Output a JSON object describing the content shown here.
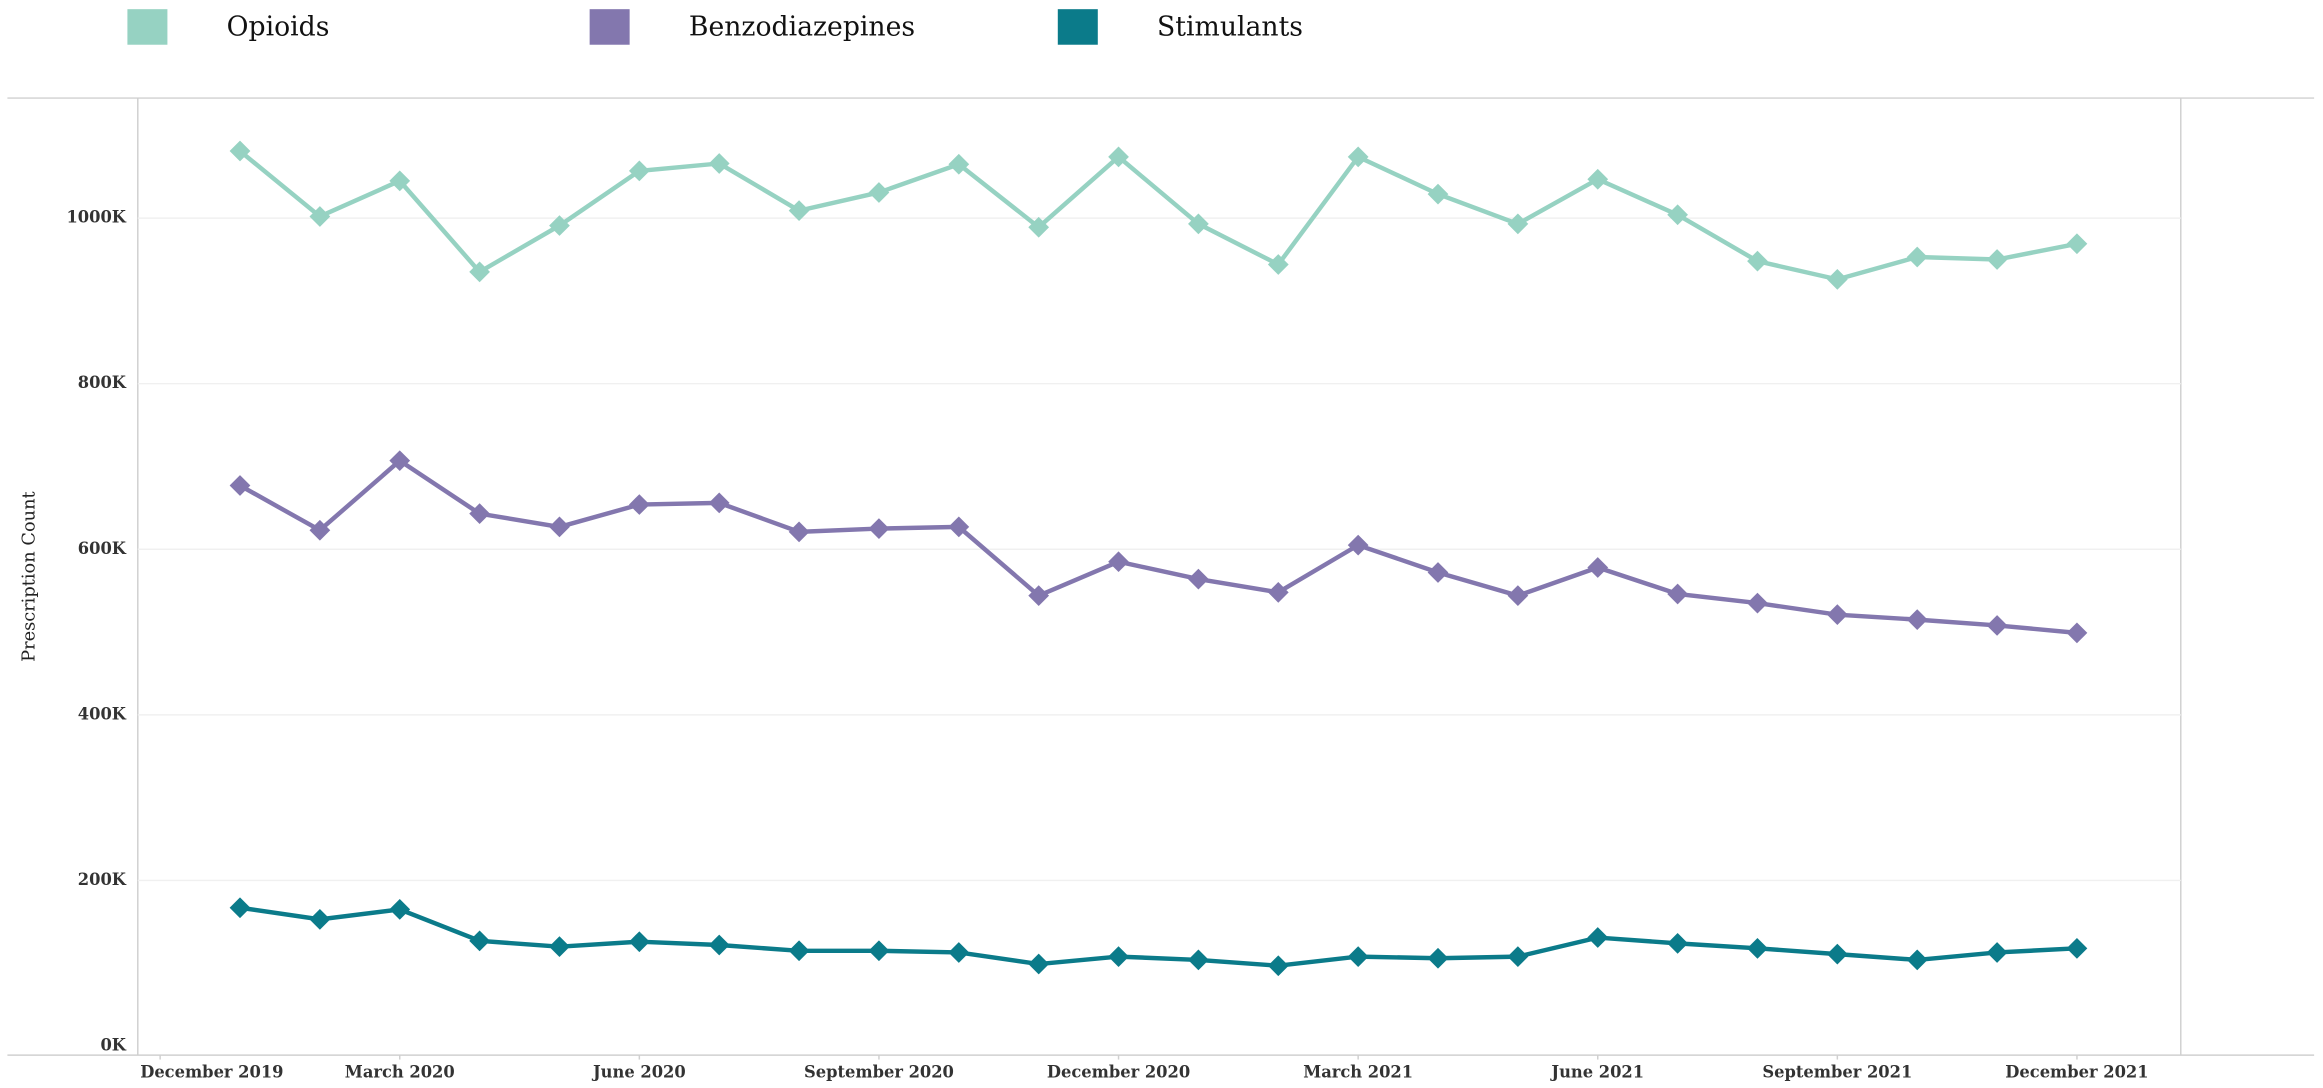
{
  "chart_data": {
    "type": "line",
    "y_label": "Prescription Count",
    "x": [
      0,
      1,
      2,
      3,
      4,
      5,
      6,
      7,
      8,
      9,
      10,
      11,
      12,
      13,
      14,
      15,
      16,
      17,
      18,
      19,
      20,
      21,
      22,
      23
    ],
    "xlim": [
      -1.28,
      24.3
    ],
    "xticks": [
      {
        "value": -1,
        "label": "December 2019"
      },
      {
        "value": 2,
        "label": "March 2020"
      },
      {
        "value": 5,
        "label": "June 2020"
      },
      {
        "value": 8,
        "label": "September 2020"
      },
      {
        "value": 11,
        "label": "December 2020"
      },
      {
        "value": 14,
        "label": "March 2021"
      },
      {
        "value": 17,
        "label": "June 2021"
      },
      {
        "value": 20,
        "label": "September 2021"
      },
      {
        "value": 23,
        "label": "December 2021"
      }
    ],
    "ylim": [
      -11,
      1145
    ],
    "yticks": [
      {
        "value": 0,
        "label": "0K"
      },
      {
        "value": 200,
        "label": "200K"
      },
      {
        "value": 400,
        "label": "400K"
      },
      {
        "value": 600,
        "label": "600K"
      },
      {
        "value": 800,
        "label": "800K"
      },
      {
        "value": 1000,
        "label": "1000K"
      }
    ],
    "grid": true,
    "legend": "top",
    "series": [
      {
        "name": "Opioids",
        "color": "#96d2c2",
        "values": [
          1081,
          1002,
          1045,
          935,
          991,
          1057,
          1066,
          1009,
          1031,
          1065,
          989,
          1074,
          993,
          944,
          1074,
          1029,
          993,
          1047,
          1004,
          948,
          926,
          953,
          950,
          969
        ]
      },
      {
        "name": "Benzodiazepines",
        "color": "#8377ae",
        "values": [
          677,
          623,
          707,
          643,
          627,
          654,
          656,
          621,
          625,
          627,
          544,
          585,
          564,
          548,
          605,
          572,
          544,
          578,
          546,
          535,
          521,
          515,
          508,
          499
        ]
      },
      {
        "name": "Stimulants",
        "color": "#0b7b8a",
        "values": [
          167,
          153,
          165,
          127,
          120,
          126,
          122,
          115,
          115,
          113,
          99,
          108,
          104,
          97,
          108,
          106,
          108,
          131,
          124,
          118,
          111,
          104,
          113,
          118
        ]
      }
    ]
  }
}
